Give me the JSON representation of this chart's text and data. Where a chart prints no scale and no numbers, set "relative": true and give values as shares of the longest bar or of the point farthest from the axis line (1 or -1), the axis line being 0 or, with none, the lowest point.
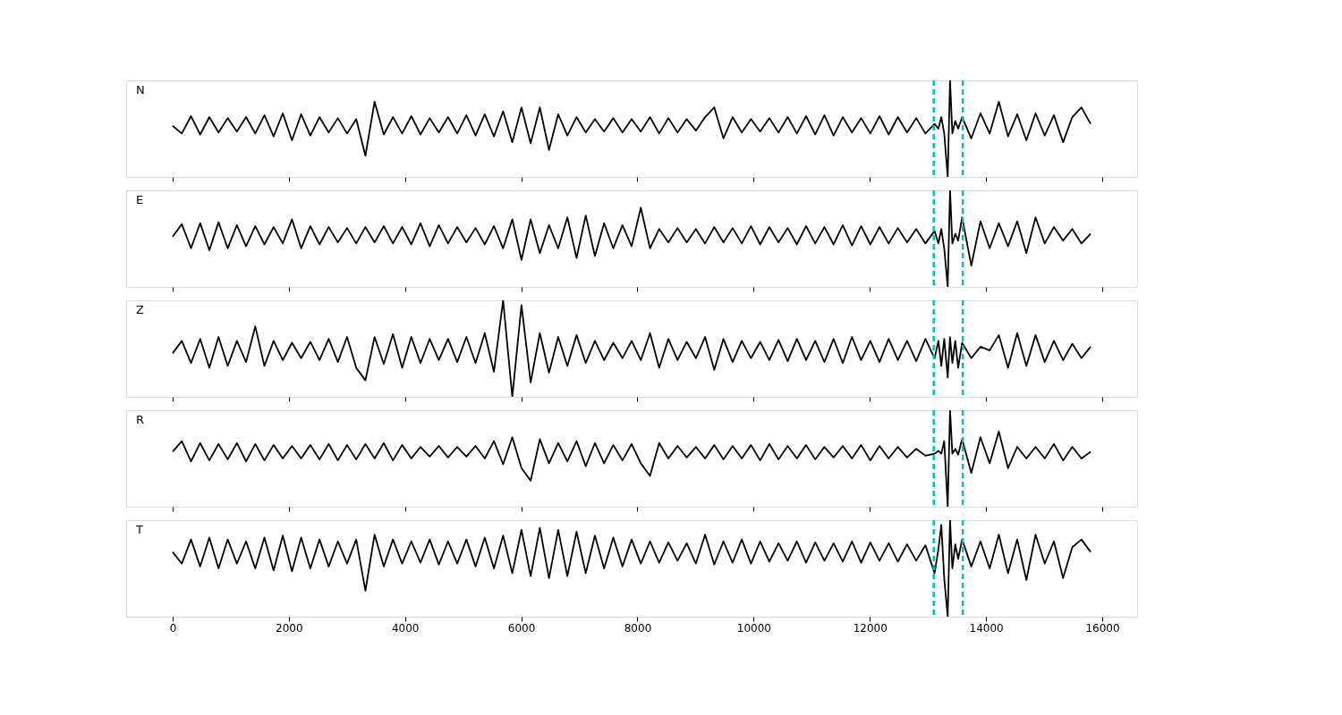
{
  "chart_data": [
    {
      "type": "line",
      "relative": true,
      "xlim": [
        -800,
        16600
      ],
      "xticks": [
        0,
        2000,
        4000,
        6000,
        8000,
        10000,
        12000,
        14000,
        16000
      ],
      "tick_labels": false,
      "grid": false,
      "line_style": "solid",
      "x": [
        0,
        158,
        316,
        474,
        632,
        790,
        948,
        1106,
        1264,
        1422,
        1580,
        1738,
        1896,
        2054,
        2212,
        2370,
        2528,
        2686,
        2844,
        3002,
        3160,
        3318,
        3476,
        3634,
        3792,
        3950,
        4108,
        4266,
        4424,
        4582,
        4740,
        4898,
        5056,
        5214,
        5372,
        5530,
        5688,
        5846,
        6004,
        6162,
        6320,
        6478,
        6636,
        6794,
        6952,
        7110,
        7268,
        7426,
        7584,
        7742,
        7900,
        8058,
        8216,
        8374,
        8532,
        8690,
        8848,
        9006,
        9164,
        9322,
        9480,
        9638,
        9796,
        9954,
        10112,
        10270,
        10428,
        10586,
        10744,
        10902,
        11060,
        11218,
        11376,
        11534,
        11692,
        11850,
        12008,
        12166,
        12324,
        12482,
        12640,
        12798,
        12956,
        13114,
        13180,
        13230,
        13280,
        13340,
        13380,
        13420,
        13470,
        13520,
        13588,
        13746,
        13904,
        14062,
        14220,
        14378,
        14536,
        14694,
        14852,
        15010,
        15168,
        15326,
        15484,
        15642,
        15800
      ],
      "series": [
        {
          "name": "N",
          "color": "#000000",
          "values": [
            0.53,
            0.45,
            0.63,
            0.44,
            0.62,
            0.46,
            0.61,
            0.47,
            0.62,
            0.45,
            0.64,
            0.42,
            0.66,
            0.38,
            0.65,
            0.43,
            0.62,
            0.46,
            0.61,
            0.45,
            0.6,
            0.22,
            0.78,
            0.44,
            0.62,
            0.45,
            0.63,
            0.44,
            0.61,
            0.46,
            0.62,
            0.45,
            0.64,
            0.43,
            0.65,
            0.42,
            0.68,
            0.36,
            0.72,
            0.35,
            0.72,
            0.28,
            0.65,
            0.43,
            0.62,
            0.46,
            0.6,
            0.47,
            0.61,
            0.46,
            0.6,
            0.47,
            0.62,
            0.45,
            0.61,
            0.46,
            0.6,
            0.48,
            0.62,
            0.72,
            0.4,
            0.62,
            0.46,
            0.6,
            0.47,
            0.61,
            0.46,
            0.62,
            0.45,
            0.63,
            0.44,
            0.64,
            0.43,
            0.62,
            0.46,
            0.61,
            0.45,
            0.63,
            0.44,
            0.62,
            0.46,
            0.61,
            0.45,
            0.55,
            0.5,
            0.62,
            0.45,
            0.0,
            1.0,
            0.45,
            0.58,
            0.5,
            0.62,
            0.4,
            0.66,
            0.45,
            0.78,
            0.42,
            0.65,
            0.38,
            0.66,
            0.43,
            0.64,
            0.36,
            0.62,
            0.72,
            0.55
          ]
        }
      ],
      "ref_lines": [
        {
          "axis": "x",
          "value": 13100,
          "color": "#00bfbf",
          "line_style": "dashed"
        },
        {
          "axis": "x",
          "value": 13600,
          "color": "#00bfbf",
          "line_style": "dashed"
        }
      ]
    },
    {
      "type": "line",
      "relative": true,
      "xlim": [
        -800,
        16600
      ],
      "xticks": [
        0,
        2000,
        4000,
        6000,
        8000,
        10000,
        12000,
        14000,
        16000
      ],
      "tick_labels": false,
      "grid": false,
      "line_style": "solid",
      "x": [
        0,
        158,
        316,
        474,
        632,
        790,
        948,
        1106,
        1264,
        1422,
        1580,
        1738,
        1896,
        2054,
        2212,
        2370,
        2528,
        2686,
        2844,
        3002,
        3160,
        3318,
        3476,
        3634,
        3792,
        3950,
        4108,
        4266,
        4424,
        4582,
        4740,
        4898,
        5056,
        5214,
        5372,
        5530,
        5688,
        5846,
        6004,
        6162,
        6320,
        6478,
        6636,
        6794,
        6952,
        7110,
        7268,
        7426,
        7584,
        7742,
        7900,
        8058,
        8216,
        8374,
        8532,
        8690,
        8848,
        9006,
        9164,
        9322,
        9480,
        9638,
        9796,
        9954,
        10112,
        10270,
        10428,
        10586,
        10744,
        10902,
        11060,
        11218,
        11376,
        11534,
        11692,
        11850,
        12008,
        12166,
        12324,
        12482,
        12640,
        12798,
        12956,
        13114,
        13180,
        13230,
        13280,
        13340,
        13380,
        13420,
        13470,
        13520,
        13588,
        13746,
        13904,
        14062,
        14220,
        14378,
        14536,
        14694,
        14852,
        15010,
        15168,
        15326,
        15484,
        15642,
        15800
      ],
      "series": [
        {
          "name": "E",
          "color": "#000000",
          "values": [
            0.52,
            0.65,
            0.4,
            0.66,
            0.38,
            0.67,
            0.4,
            0.64,
            0.42,
            0.63,
            0.44,
            0.62,
            0.45,
            0.7,
            0.4,
            0.63,
            0.44,
            0.62,
            0.46,
            0.61,
            0.45,
            0.62,
            0.46,
            0.63,
            0.45,
            0.62,
            0.44,
            0.66,
            0.42,
            0.64,
            0.45,
            0.62,
            0.46,
            0.61,
            0.44,
            0.63,
            0.4,
            0.7,
            0.28,
            0.7,
            0.35,
            0.64,
            0.4,
            0.72,
            0.3,
            0.74,
            0.32,
            0.66,
            0.4,
            0.64,
            0.42,
            0.82,
            0.4,
            0.6,
            0.46,
            0.61,
            0.46,
            0.6,
            0.45,
            0.62,
            0.46,
            0.61,
            0.45,
            0.63,
            0.44,
            0.62,
            0.46,
            0.61,
            0.44,
            0.63,
            0.45,
            0.62,
            0.44,
            0.64,
            0.43,
            0.63,
            0.44,
            0.62,
            0.45,
            0.61,
            0.46,
            0.6,
            0.45,
            0.58,
            0.45,
            0.6,
            0.4,
            0.0,
            1.0,
            0.45,
            0.55,
            0.48,
            0.72,
            0.22,
            0.68,
            0.4,
            0.66,
            0.42,
            0.68,
            0.35,
            0.72,
            0.45,
            0.62,
            0.48,
            0.6,
            0.45,
            0.55
          ]
        }
      ],
      "ref_lines": [
        {
          "axis": "x",
          "value": 13100,
          "color": "#00bfbf",
          "line_style": "dashed"
        },
        {
          "axis": "x",
          "value": 13600,
          "color": "#00bfbf",
          "line_style": "dashed"
        }
      ]
    },
    {
      "type": "line",
      "relative": true,
      "xlim": [
        -800,
        16600
      ],
      "xticks": [
        0,
        2000,
        4000,
        6000,
        8000,
        10000,
        12000,
        14000,
        16000
      ],
      "tick_labels": false,
      "grid": false,
      "line_style": "solid",
      "x": [
        0,
        158,
        316,
        474,
        632,
        790,
        948,
        1106,
        1264,
        1422,
        1580,
        1738,
        1896,
        2054,
        2212,
        2370,
        2528,
        2686,
        2844,
        3002,
        3160,
        3318,
        3476,
        3634,
        3792,
        3950,
        4108,
        4266,
        4424,
        4582,
        4740,
        4898,
        5056,
        5214,
        5372,
        5530,
        5688,
        5846,
        6004,
        6162,
        6320,
        6478,
        6636,
        6794,
        6952,
        7110,
        7268,
        7426,
        7584,
        7742,
        7900,
        8058,
        8216,
        8374,
        8532,
        8690,
        8848,
        9006,
        9164,
        9322,
        9480,
        9638,
        9796,
        9954,
        10112,
        10270,
        10428,
        10586,
        10744,
        10902,
        11060,
        11218,
        11376,
        11534,
        11692,
        11850,
        12008,
        12166,
        12324,
        12482,
        12640,
        12798,
        12956,
        13114,
        13180,
        13230,
        13280,
        13340,
        13380,
        13420,
        13470,
        13520,
        13588,
        13746,
        13904,
        14062,
        14220,
        14378,
        14536,
        14694,
        14852,
        15010,
        15168,
        15326,
        15484,
        15642,
        15800
      ],
      "series": [
        {
          "name": "Z",
          "color": "#000000",
          "values": [
            0.45,
            0.58,
            0.35,
            0.6,
            0.3,
            0.62,
            0.32,
            0.58,
            0.36,
            0.73,
            0.32,
            0.58,
            0.38,
            0.56,
            0.4,
            0.57,
            0.38,
            0.6,
            0.36,
            0.62,
            0.3,
            0.17,
            0.62,
            0.34,
            0.65,
            0.3,
            0.62,
            0.35,
            0.6,
            0.38,
            0.6,
            0.36,
            0.62,
            0.35,
            0.66,
            0.26,
            1.0,
            0.0,
            0.95,
            0.15,
            0.66,
            0.25,
            0.62,
            0.32,
            0.64,
            0.35,
            0.58,
            0.38,
            0.56,
            0.4,
            0.58,
            0.38,
            0.66,
            0.3,
            0.6,
            0.38,
            0.57,
            0.4,
            0.62,
            0.28,
            0.6,
            0.36,
            0.58,
            0.4,
            0.57,
            0.38,
            0.59,
            0.37,
            0.6,
            0.38,
            0.58,
            0.36,
            0.6,
            0.35,
            0.62,
            0.38,
            0.58,
            0.36,
            0.6,
            0.38,
            0.58,
            0.37,
            0.6,
            0.4,
            0.58,
            0.32,
            0.6,
            0.2,
            0.62,
            0.35,
            0.58,
            0.3,
            0.56,
            0.4,
            0.52,
            0.48,
            0.64,
            0.3,
            0.66,
            0.32,
            0.64,
            0.36,
            0.58,
            0.38,
            0.55,
            0.4,
            0.52
          ]
        }
      ],
      "ref_lines": [
        {
          "axis": "x",
          "value": 13100,
          "color": "#00bfbf",
          "line_style": "dashed"
        },
        {
          "axis": "x",
          "value": 13600,
          "color": "#00bfbf",
          "line_style": "dashed"
        }
      ]
    },
    {
      "type": "line",
      "relative": true,
      "xlim": [
        -800,
        16600
      ],
      "xticks": [
        0,
        2000,
        4000,
        6000,
        8000,
        10000,
        12000,
        14000,
        16000
      ],
      "tick_labels": false,
      "grid": false,
      "line_style": "solid",
      "x": [
        0,
        158,
        316,
        474,
        632,
        790,
        948,
        1106,
        1264,
        1422,
        1580,
        1738,
        1896,
        2054,
        2212,
        2370,
        2528,
        2686,
        2844,
        3002,
        3160,
        3318,
        3476,
        3634,
        3792,
        3950,
        4108,
        4266,
        4424,
        4582,
        4740,
        4898,
        5056,
        5214,
        5372,
        5530,
        5688,
        5846,
        6004,
        6162,
        6320,
        6478,
        6636,
        6794,
        6952,
        7110,
        7268,
        7426,
        7584,
        7742,
        7900,
        8058,
        8216,
        8374,
        8532,
        8690,
        8848,
        9006,
        9164,
        9322,
        9480,
        9638,
        9796,
        9954,
        10112,
        10270,
        10428,
        10586,
        10744,
        10902,
        11060,
        11218,
        11376,
        11534,
        11692,
        11850,
        12008,
        12166,
        12324,
        12482,
        12640,
        12798,
        12956,
        13114,
        13180,
        13230,
        13280,
        13340,
        13380,
        13420,
        13470,
        13520,
        13588,
        13746,
        13904,
        14062,
        14220,
        14378,
        14536,
        14694,
        14852,
        15010,
        15168,
        15326,
        15484,
        15642,
        15800
      ],
      "series": [
        {
          "name": "R",
          "color": "#000000",
          "values": [
            0.57,
            0.68,
            0.47,
            0.66,
            0.48,
            0.65,
            0.49,
            0.66,
            0.47,
            0.65,
            0.48,
            0.64,
            0.5,
            0.63,
            0.5,
            0.64,
            0.49,
            0.65,
            0.48,
            0.64,
            0.49,
            0.65,
            0.5,
            0.66,
            0.48,
            0.64,
            0.5,
            0.62,
            0.52,
            0.63,
            0.51,
            0.62,
            0.52,
            0.63,
            0.5,
            0.68,
            0.44,
            0.72,
            0.4,
            0.27,
            0.7,
            0.45,
            0.66,
            0.47,
            0.68,
            0.42,
            0.66,
            0.45,
            0.64,
            0.48,
            0.65,
            0.45,
            0.32,
            0.66,
            0.5,
            0.63,
            0.51,
            0.62,
            0.5,
            0.64,
            0.49,
            0.63,
            0.5,
            0.64,
            0.48,
            0.65,
            0.49,
            0.63,
            0.5,
            0.64,
            0.49,
            0.62,
            0.51,
            0.63,
            0.5,
            0.64,
            0.48,
            0.63,
            0.5,
            0.62,
            0.51,
            0.6,
            0.53,
            0.55,
            0.58,
            0.55,
            0.68,
            0.0,
            1.0,
            0.55,
            0.6,
            0.54,
            0.7,
            0.35,
            0.72,
            0.45,
            0.78,
            0.4,
            0.62,
            0.5,
            0.62,
            0.5,
            0.65,
            0.48,
            0.62,
            0.5,
            0.57
          ]
        }
      ],
      "ref_lines": [
        {
          "axis": "x",
          "value": 13100,
          "color": "#00bfbf",
          "line_style": "dashed"
        },
        {
          "axis": "x",
          "value": 13600,
          "color": "#00bfbf",
          "line_style": "dashed"
        }
      ]
    },
    {
      "type": "line",
      "relative": true,
      "xlim": [
        -800,
        16600
      ],
      "xticks": [
        0,
        2000,
        4000,
        6000,
        8000,
        10000,
        12000,
        14000,
        16000
      ],
      "tick_labels": "x",
      "grid": false,
      "line_style": "solid",
      "x": [
        0,
        158,
        316,
        474,
        632,
        790,
        948,
        1106,
        1264,
        1422,
        1580,
        1738,
        1896,
        2054,
        2212,
        2370,
        2528,
        2686,
        2844,
        3002,
        3160,
        3318,
        3476,
        3634,
        3792,
        3950,
        4108,
        4266,
        4424,
        4582,
        4740,
        4898,
        5056,
        5214,
        5372,
        5530,
        5688,
        5846,
        6004,
        6162,
        6320,
        6478,
        6636,
        6794,
        6952,
        7110,
        7268,
        7426,
        7584,
        7742,
        7900,
        8058,
        8216,
        8374,
        8532,
        8690,
        8848,
        9006,
        9164,
        9322,
        9480,
        9638,
        9796,
        9954,
        10112,
        10270,
        10428,
        10586,
        10744,
        10902,
        11060,
        11218,
        11376,
        11534,
        11692,
        11850,
        12008,
        12166,
        12324,
        12482,
        12640,
        12798,
        12956,
        13114,
        13180,
        13230,
        13280,
        13340,
        13380,
        13420,
        13470,
        13520,
        13588,
        13746,
        13904,
        14062,
        14220,
        14378,
        14536,
        14694,
        14852,
        15010,
        15168,
        15326,
        15484,
        15642,
        15800
      ],
      "series": [
        {
          "name": "T",
          "color": "#000000",
          "values": [
            0.67,
            0.55,
            0.8,
            0.52,
            0.82,
            0.5,
            0.8,
            0.55,
            0.78,
            0.5,
            0.82,
            0.48,
            0.84,
            0.47,
            0.82,
            0.5,
            0.8,
            0.52,
            0.78,
            0.55,
            0.8,
            0.27,
            0.85,
            0.52,
            0.8,
            0.55,
            0.78,
            0.56,
            0.8,
            0.54,
            0.78,
            0.55,
            0.8,
            0.52,
            0.82,
            0.5,
            0.84,
            0.45,
            0.9,
            0.42,
            0.92,
            0.4,
            0.9,
            0.42,
            0.88,
            0.45,
            0.84,
            0.5,
            0.82,
            0.52,
            0.8,
            0.55,
            0.78,
            0.56,
            0.77,
            0.58,
            0.76,
            0.55,
            0.85,
            0.54,
            0.78,
            0.56,
            0.8,
            0.55,
            0.78,
            0.57,
            0.76,
            0.58,
            0.78,
            0.56,
            0.77,
            0.58,
            0.76,
            0.57,
            0.78,
            0.56,
            0.77,
            0.58,
            0.76,
            0.57,
            0.75,
            0.58,
            0.74,
            0.45,
            0.7,
            0.95,
            0.4,
            0.0,
            1.0,
            0.5,
            0.75,
            0.6,
            0.8,
            0.52,
            0.78,
            0.5,
            0.85,
            0.45,
            0.8,
            0.38,
            0.85,
            0.55,
            0.78,
            0.4,
            0.72,
            0.8,
            0.67
          ]
        }
      ],
      "ref_lines": [
        {
          "axis": "x",
          "value": 13100,
          "color": "#00bfbf",
          "line_style": "dashed"
        },
        {
          "axis": "x",
          "value": 13600,
          "color": "#00bfbf",
          "line_style": "dashed"
        }
      ]
    }
  ]
}
